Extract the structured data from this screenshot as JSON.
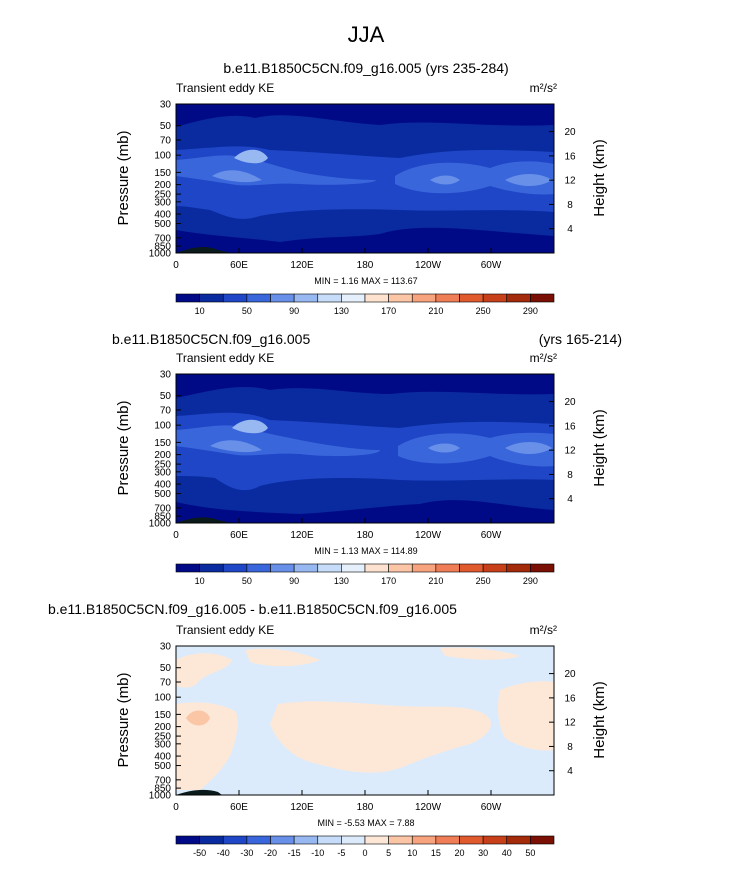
{
  "page_title": "JJA",
  "chart_data": [
    {
      "type": "heatmap",
      "title": "b.e11.B1850C5CN.f09_g16.005 (yrs 235-284)",
      "title_right": "",
      "subtitle_left": "Transient eddy KE",
      "units": "m²/s²",
      "ylabel": "Pressure (mb)",
      "ylabel_right": "Height (km)",
      "x_ticks": [
        "0",
        "60E",
        "120E",
        "180",
        "120W",
        "60W"
      ],
      "x_range": [
        0,
        360
      ],
      "y_ticks": [
        "30",
        "50",
        "70",
        "100",
        "150",
        "200",
        "250",
        "300",
        "400",
        "500",
        "700",
        "850",
        "1000"
      ],
      "y_range": [
        30,
        1000
      ],
      "height_ticks": [
        "20",
        "16",
        "12",
        "8",
        "4"
      ],
      "min_max_text": "MIN =   1.16  MAX = 113.67",
      "min": 1.16,
      "max": 113.67,
      "colorbar_labels": [
        "10",
        "50",
        "90",
        "130",
        "170",
        "210",
        "250",
        "290"
      ],
      "colorbar_colors": [
        "#000a87",
        "#0a2aa0",
        "#1e46c6",
        "#3a66dc",
        "#6890e8",
        "#98b8f2",
        "#c6dcf8",
        "#e6f0fc",
        "#fde3cf",
        "#fbc6a6",
        "#f7a37d",
        "#ef7e56",
        "#e05a2d",
        "#c8401a",
        "#a42a0c",
        "#7a1003"
      ]
    },
    {
      "type": "heatmap",
      "title": "b.e11.B1850C5CN.f09_g16.005",
      "title_right": "(yrs 165-214)",
      "subtitle_left": "Transient eddy KE",
      "units": "m²/s²",
      "ylabel": "Pressure (mb)",
      "ylabel_right": "Height (km)",
      "x_ticks": [
        "0",
        "60E",
        "120E",
        "180",
        "120W",
        "60W"
      ],
      "x_range": [
        0,
        360
      ],
      "y_ticks": [
        "30",
        "50",
        "70",
        "100",
        "150",
        "200",
        "250",
        "300",
        "400",
        "500",
        "700",
        "850",
        "1000"
      ],
      "y_range": [
        30,
        1000
      ],
      "height_ticks": [
        "20",
        "16",
        "12",
        "8",
        "4"
      ],
      "min_max_text": "MIN =   1.13  MAX = 114.89",
      "min": 1.13,
      "max": 114.89,
      "colorbar_labels": [
        "10",
        "50",
        "90",
        "130",
        "170",
        "210",
        "250",
        "290"
      ],
      "colorbar_colors": [
        "#000a87",
        "#0a2aa0",
        "#1e46c6",
        "#3a66dc",
        "#6890e8",
        "#98b8f2",
        "#c6dcf8",
        "#e6f0fc",
        "#fde3cf",
        "#fbc6a6",
        "#f7a37d",
        "#ef7e56",
        "#e05a2d",
        "#c8401a",
        "#a42a0c",
        "#7a1003"
      ]
    },
    {
      "type": "heatmap",
      "title": "b.e11.B1850C5CN.f09_g16.005 - b.e11.B1850C5CN.f09_g16.005",
      "title_right": "",
      "subtitle_left": "Transient eddy KE",
      "units": "m²/s²",
      "ylabel": "Pressure (mb)",
      "ylabel_right": "Height (km)",
      "x_ticks": [
        "0",
        "60E",
        "120E",
        "180",
        "120W",
        "60W"
      ],
      "x_range": [
        0,
        360
      ],
      "y_ticks": [
        "30",
        "50",
        "70",
        "100",
        "150",
        "200",
        "250",
        "300",
        "400",
        "500",
        "700",
        "850",
        "1000"
      ],
      "y_range": [
        30,
        1000
      ],
      "height_ticks": [
        "20",
        "16",
        "12",
        "8",
        "4"
      ],
      "min_max_text": "MIN =  -5.53  MAX =   7.88",
      "min": -5.53,
      "max": 7.88,
      "colorbar_labels": [
        "-50",
        "-40",
        "-30",
        "-20",
        "-15",
        "-10",
        "-5",
        "0",
        "5",
        "10",
        "15",
        "20",
        "30",
        "40",
        "50"
      ],
      "colorbar_colors": [
        "#000a87",
        "#0a2aa0",
        "#1e46c6",
        "#3a66dc",
        "#6890e8",
        "#98b8f2",
        "#c6dcf8",
        "#dcebfb",
        "#fde8d8",
        "#fbc6a6",
        "#f7a37d",
        "#ef7e56",
        "#e05a2d",
        "#c8401a",
        "#a42a0c",
        "#7a1003"
      ]
    }
  ]
}
